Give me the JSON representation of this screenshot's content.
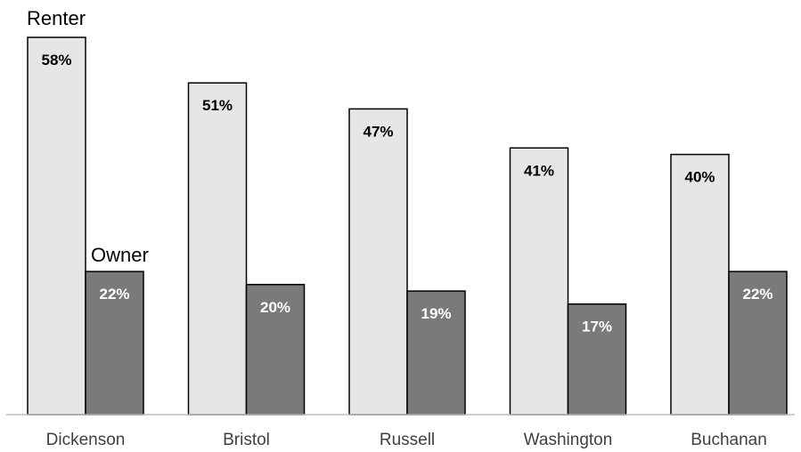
{
  "chart_data": {
    "type": "bar",
    "categories": [
      "Dickenson",
      "Bristol",
      "Russell",
      "Washington",
      "Buchanan"
    ],
    "series": [
      {
        "name": "Renter",
        "values": [
          58,
          51,
          47,
          41,
          40
        ],
        "labels": [
          "58%",
          "51%",
          "47%",
          "41%",
          "40%"
        ],
        "color": "#E6E6E6",
        "label_color": "#000000"
      },
      {
        "name": "Owner",
        "values": [
          22,
          20,
          19,
          17,
          22
        ],
        "labels": [
          "22%",
          "20%",
          "19%",
          "17%",
          "22%"
        ],
        "color": "#7A7A7A",
        "label_color": "#FFFFFF"
      }
    ],
    "ylim": [
      0,
      58
    ],
    "grid": false,
    "legend": "inline labels above first group",
    "axis_color": "#BFBFBF",
    "bar_outline": "#000000"
  }
}
